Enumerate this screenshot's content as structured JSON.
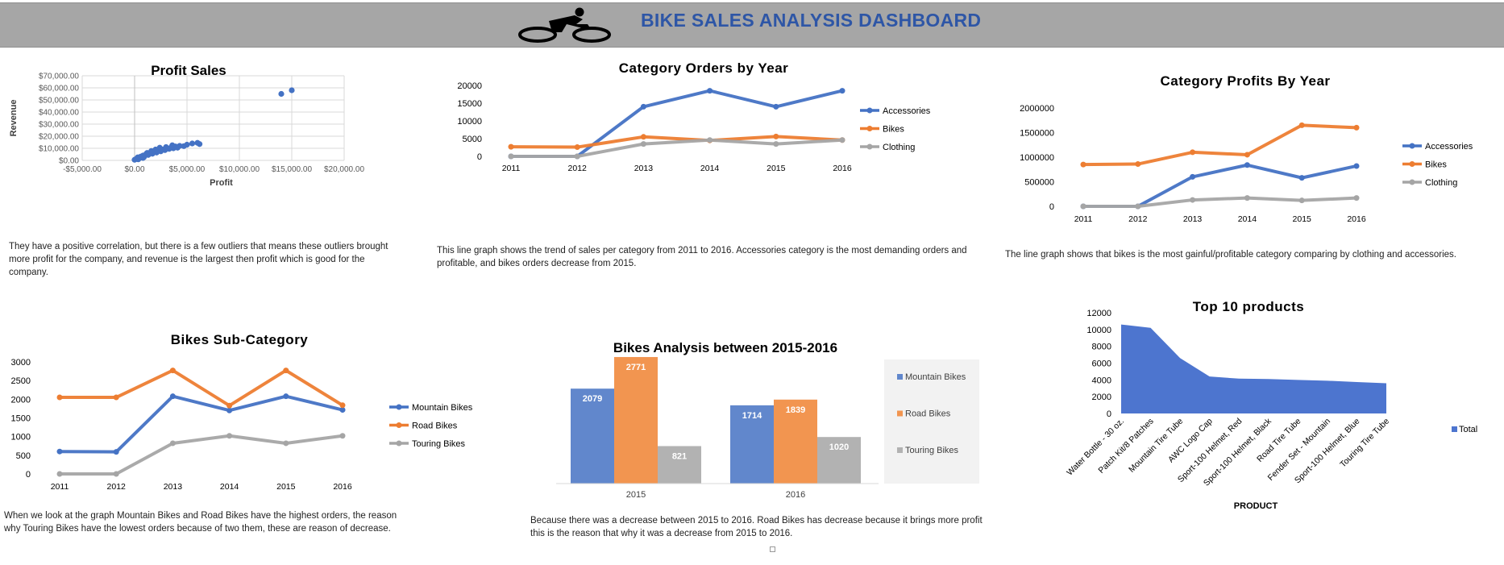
{
  "header": {
    "title": "BIKE SALES ANALYSIS DASHBOARD",
    "logo_icon": "cyclist-icon"
  },
  "colors": {
    "blue": "#4472c4",
    "orange": "#ed7d31",
    "gray": "#a5a5a5",
    "bar_blue": "#6187cc",
    "bar_orange": "#f29550",
    "bar_gray": "#b2b2b2",
    "area_blue": "#4d75cf",
    "title_blue": "#2e56a6"
  },
  "descriptions": {
    "profit_sales": "They have a positive correlation, but there is a few outliers that means these outliers brought more profit for the  company, and revenue  is the largest then profit which is good for the company.",
    "category_orders": "This line graph shows the trend of  sales per category from 2011 to 2016. Accessories category is the most demanding orders and profitable, and bikes orders decrease  from 2015.",
    "category_profits": "The line graph shows that bikes is the most gainful/profitable category comparing by clothing and accessories.",
    "bikes_subcategory": "When we look at the graph Mountain Bikes and Road Bikes have the highest orders, the reason why Touring Bikes have the lowest orders because of two them, these are reason of decrease.",
    "bikes_analysis": "Because there was a decrease between  2015 to 2016. Road Bikes has decrease because it brings more profit this is the reason that why it was a decrease from 2015 to 2016."
  },
  "chart_data": [
    {
      "id": "profit_sales",
      "type": "scatter",
      "title": "Profit Sales",
      "xlabel": "Profit",
      "ylabel": "Revenue",
      "xlim": [
        -5000,
        20000
      ],
      "ylim": [
        0,
        70000
      ],
      "x_ticks": [
        "-$5,000.00",
        "$0.00",
        "$5,000.00",
        "$10,000.00",
        "$15,000.00",
        "$20,000.00"
      ],
      "y_ticks": [
        "$0.00",
        "$10,000.00",
        "$20,000.00",
        "$30,000.00",
        "$40,000.00",
        "$50,000.00",
        "$60,000.00",
        "$70,000.00"
      ],
      "grid": true,
      "points": [
        [
          0,
          500
        ],
        [
          150,
          1200
        ],
        [
          300,
          2500
        ],
        [
          450,
          1800
        ],
        [
          600,
          3200
        ],
        [
          800,
          4000
        ],
        [
          900,
          2800
        ],
        [
          1100,
          5200
        ],
        [
          1300,
          4500
        ],
        [
          1500,
          6000
        ],
        [
          1700,
          5500
        ],
        [
          1900,
          7200
        ],
        [
          2100,
          6500
        ],
        [
          2300,
          8000
        ],
        [
          2500,
          7500
        ],
        [
          2700,
          9000
        ],
        [
          2900,
          8500
        ],
        [
          3100,
          10000
        ],
        [
          3300,
          9500
        ],
        [
          3500,
          11000
        ],
        [
          3700,
          10000
        ],
        [
          3900,
          11500
        ],
        [
          4100,
          10500
        ],
        [
          4300,
          12000
        ],
        [
          2400,
          10500
        ],
        [
          2000,
          9000
        ],
        [
          1600,
          7800
        ],
        [
          1200,
          6200
        ],
        [
          3000,
          11000
        ],
        [
          3600,
          12500
        ],
        [
          5000,
          13000
        ],
        [
          5500,
          14000
        ],
        [
          6000,
          14500
        ],
        [
          6200,
          13500
        ],
        [
          4700,
          11800
        ],
        [
          800,
          2000
        ],
        [
          350,
          900
        ],
        [
          14000,
          55000
        ],
        [
          15000,
          58000
        ]
      ]
    },
    {
      "id": "category_orders",
      "type": "line",
      "title": "Category  Orders  by  Year",
      "categories": [
        "2011",
        "2012",
        "2013",
        "2014",
        "2015",
        "2016"
      ],
      "y_ticks": [
        "0",
        "5000",
        "10000",
        "15000",
        "20000"
      ],
      "ylim": [
        0,
        20000
      ],
      "series": [
        {
          "name": "Accessories",
          "color": "blue",
          "values": [
            0,
            0,
            14000,
            18500,
            14000,
            18500
          ]
        },
        {
          "name": "Bikes",
          "color": "orange",
          "values": [
            2700,
            2600,
            5500,
            4500,
            5600,
            4600
          ]
        },
        {
          "name": "Clothing",
          "color": "gray",
          "values": [
            0,
            0,
            3500,
            4600,
            3500,
            4600
          ]
        }
      ],
      "legend": "right"
    },
    {
      "id": "category_profits",
      "type": "line",
      "title": "Category  Profits  By  Year",
      "categories": [
        "2011",
        "2012",
        "2013",
        "2014",
        "2015",
        "2016"
      ],
      "y_ticks": [
        "0",
        "500000",
        "1000000",
        "1500000",
        "2000000"
      ],
      "ylim": [
        0,
        2000000
      ],
      "series": [
        {
          "name": "Accessories",
          "color": "blue",
          "values": [
            0,
            0,
            600000,
            840000,
            580000,
            820000
          ]
        },
        {
          "name": "Bikes",
          "color": "orange",
          "values": [
            850000,
            860000,
            1100000,
            1050000,
            1650000,
            1600000
          ]
        },
        {
          "name": "Clothing",
          "color": "gray",
          "values": [
            0,
            0,
            130000,
            170000,
            120000,
            170000
          ]
        }
      ],
      "legend": "right"
    },
    {
      "id": "bikes_subcategory",
      "type": "line",
      "title": "Bikes  Sub-Category",
      "categories": [
        "2011",
        "2012",
        "2013",
        "2014",
        "2015",
        "2016"
      ],
      "y_ticks": [
        "0",
        "500",
        "1000",
        "1500",
        "2000",
        "2500",
        "3000"
      ],
      "ylim": [
        0,
        3000
      ],
      "series": [
        {
          "name": "Mountain Bikes",
          "color": "blue",
          "values": [
            600,
            590,
            2079,
            1700,
            2079,
            1714
          ]
        },
        {
          "name": "Road Bikes",
          "color": "orange",
          "values": [
            2050,
            2050,
            2771,
            1830,
            2771,
            1839
          ]
        },
        {
          "name": "Touring Bikes",
          "color": "gray",
          "values": [
            0,
            0,
            821,
            1020,
            821,
            1020
          ]
        }
      ],
      "legend": "right"
    },
    {
      "id": "bikes_analysis",
      "type": "bar",
      "title": "Bikes Analysis between 2015-2016",
      "categories": [
        "2015",
        "2016"
      ],
      "ylim": [
        0,
        3000
      ],
      "series": [
        {
          "name": "Mountain Bikes",
          "color": "bar_blue",
          "values": [
            2079,
            1714
          ]
        },
        {
          "name": "Road Bikes",
          "color": "bar_orange",
          "values": [
            2771,
            1839
          ]
        },
        {
          "name": "Touring Bikes",
          "color": "bar_gray",
          "values": [
            821,
            1020
          ]
        }
      ],
      "legend": "right"
    },
    {
      "id": "top_products",
      "type": "area",
      "title": "Top  10 products",
      "xlabel": "PRODUCT",
      "categories": [
        "Water Bottle - 30 oz.",
        "Patch Kit/8 Patches",
        "Mountain Tire Tube",
        "AWC Logo Cap",
        "Sport-100 Helmet, Red",
        "Sport-100 Helmet, Black",
        "Road Tire Tube",
        "Fender Set - Mountain",
        "Sport-100 Helmet, Blue",
        "Touring Tire Tube"
      ],
      "y_ticks": [
        "0",
        "2000",
        "4000",
        "6000",
        "8000",
        "10000",
        "12000"
      ],
      "ylim": [
        0,
        12000
      ],
      "series": [
        {
          "name": "Total",
          "color": "area_blue",
          "values": [
            10600,
            10200,
            6600,
            4400,
            4150,
            4100,
            4000,
            3900,
            3750,
            3600
          ]
        }
      ],
      "legend": "right"
    }
  ]
}
